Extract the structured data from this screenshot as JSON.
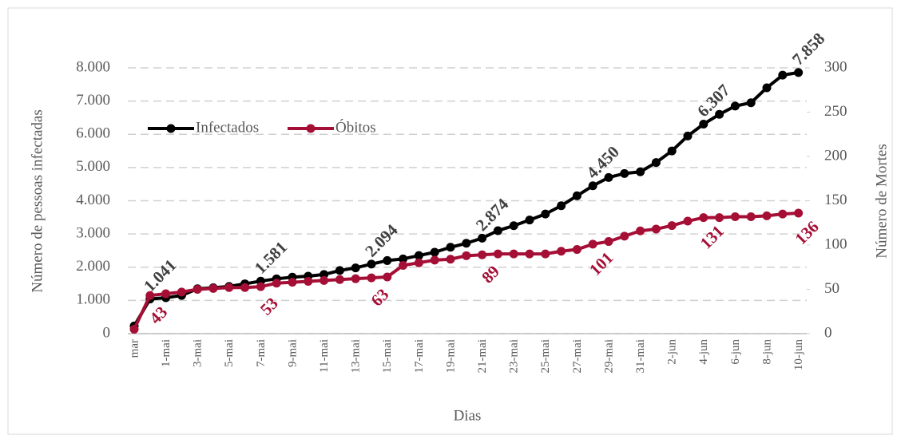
{
  "chart_data": {
    "type": "line",
    "categories": [
      "mar",
      null,
      "1-mai",
      null,
      "3-mai",
      null,
      "5-mai",
      null,
      "7-mai",
      null,
      "9-mai",
      null,
      "11-mai",
      null,
      "13-mai",
      null,
      "15-mai",
      null,
      "17-mai",
      null,
      "19-mai",
      null,
      "21-mai",
      null,
      "23-mai",
      null,
      "25-mai",
      null,
      "27-mai",
      null,
      "29-mai",
      null,
      "31-mai",
      null,
      "2-jun",
      null,
      "4-jun",
      null,
      "6-jun",
      null,
      "8-jun",
      null,
      "10-jun"
    ],
    "series": [
      {
        "name": "Infectados",
        "color": "#000000",
        "values": [
          230,
          1041,
          1080,
          1150,
          1350,
          1380,
          1420,
          1500,
          1581,
          1650,
          1700,
          1730,
          1780,
          1900,
          1980,
          2094,
          2200,
          2250,
          2350,
          2450,
          2600,
          2720,
          2874,
          3100,
          3250,
          3420,
          3600,
          3850,
          4150,
          4450,
          4700,
          4820,
          4870,
          5150,
          5500,
          5950,
          6307,
          6600,
          6850,
          6950,
          7400,
          7780,
          7858
        ],
        "value_labels": [
          null,
          "1.041",
          null,
          null,
          null,
          null,
          null,
          null,
          "1.581",
          null,
          null,
          null,
          null,
          null,
          null,
          "2.094",
          null,
          null,
          null,
          null,
          null,
          null,
          "2.874",
          null,
          null,
          null,
          null,
          null,
          null,
          "4.450",
          null,
          null,
          null,
          null,
          null,
          null,
          "6.307",
          null,
          null,
          null,
          null,
          null,
          "7.858"
        ]
      },
      {
        "name": "Óbitos",
        "color": "#a50f35",
        "axis": "y2",
        "values": [
          5,
          43,
          45,
          47,
          50,
          51,
          52,
          52,
          53,
          57,
          58,
          59,
          60,
          61,
          62,
          63,
          64,
          77,
          80,
          83,
          84,
          88,
          89,
          90,
          90,
          90,
          90,
          93,
          95,
          101,
          104,
          110,
          116,
          118,
          122,
          127,
          131,
          131,
          132,
          132,
          133,
          135,
          136
        ],
        "value_labels": [
          null,
          "43",
          null,
          null,
          null,
          null,
          null,
          null,
          "53",
          null,
          null,
          null,
          null,
          null,
          null,
          "63",
          null,
          null,
          null,
          null,
          null,
          null,
          "89",
          null,
          null,
          null,
          null,
          null,
          null,
          "101",
          null,
          null,
          null,
          null,
          null,
          null,
          "131",
          null,
          null,
          null,
          null,
          null,
          "136"
        ]
      }
    ],
    "x_label": "Dias",
    "y_label": "Número de pessoas infectadas",
    "y2_label": "Número de Mortes",
    "ylim": [
      0,
      8000
    ],
    "yticks": [
      0,
      {
        "value": 1000,
        "label": "1.000"
      },
      {
        "value": 2000,
        "label": "2.000"
      },
      {
        "value": 3000,
        "label": "3.000"
      },
      {
        "value": 4000,
        "label": "4.000"
      },
      {
        "value": 5000,
        "label": "5.000"
      },
      {
        "value": 6000,
        "label": "6.000"
      },
      {
        "value": 7000,
        "label": "7.000"
      },
      {
        "value": 8000,
        "label": "8.000"
      }
    ],
    "y2lim": [
      0,
      300
    ],
    "y2ticks": [
      0,
      50,
      100,
      150,
      200,
      250,
      300
    ],
    "grid": true
  }
}
